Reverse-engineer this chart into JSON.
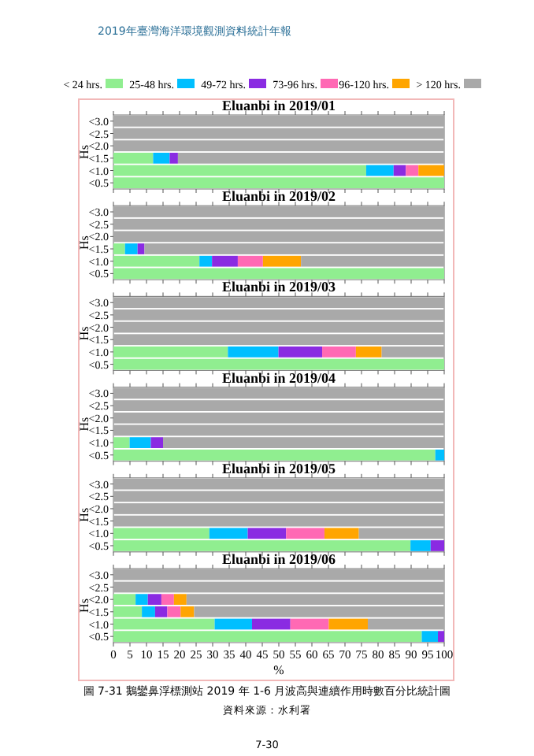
{
  "chart_data": [
    {
      "type": "bar",
      "orientation": "horizontal",
      "stacked": true,
      "title": "Eluanbi in 2019/01",
      "ylabel": "Hs",
      "legend": "top",
      "tick_labels": "y",
      "annotations": [
        "2019年臺灣海洋環境觀測資料統計年報"
      ],
      "categories": [
        "<3.0",
        "<2.5",
        "<2.0",
        "<1.5",
        "<1.0",
        "<0.5"
      ],
      "xlim": [
        0,
        100
      ],
      "xticks": [
        0,
        5,
        10,
        15,
        20,
        25,
        30,
        35,
        40,
        45,
        50,
        55,
        60,
        65,
        70,
        75,
        80,
        85,
        90,
        95,
        100
      ],
      "series": [
        {
          "name": "< 24 hrs.",
          "color": "#90ee90",
          "values": [
            0,
            0,
            0,
            12,
            76.4,
            100
          ]
        },
        {
          "name": "25-48 hrs.",
          "color": "#00bfff",
          "values": [
            0,
            0,
            0,
            5,
            8.3,
            0
          ]
        },
        {
          "name": "49-72 hrs.",
          "color": "#8a2be2",
          "values": [
            0,
            0,
            0,
            2.5,
            3.7,
            0
          ]
        },
        {
          "name": "73-96 hrs.",
          "color": "#ff69b4",
          "values": [
            0,
            0,
            0,
            0,
            3.8,
            0
          ]
        },
        {
          "name": "96-120 hrs.",
          "color": "#ffa500",
          "values": [
            0,
            0,
            0,
            0,
            7.8,
            0
          ]
        },
        {
          "name": "> 120 hrs.",
          "color": "#a9a9a9",
          "values": [
            100,
            100,
            100,
            80.5,
            0,
            0
          ]
        }
      ]
    },
    {
      "type": "bar",
      "orientation": "horizontal",
      "stacked": true,
      "title": "Eluanbi in 2019/02",
      "ylabel": "Hs",
      "tick_labels": "y",
      "categories": [
        "<3.0",
        "<2.5",
        "<2.0",
        "<1.5",
        "<1.0",
        "<0.5"
      ],
      "xlim": [
        0,
        100
      ],
      "xticks": [
        0,
        5,
        10,
        15,
        20,
        25,
        30,
        35,
        40,
        45,
        50,
        55,
        60,
        65,
        70,
        75,
        80,
        85,
        90,
        95,
        100
      ],
      "series": [
        {
          "color": "#90ee90",
          "values": [
            0,
            0,
            0,
            3.5,
            26,
            100
          ]
        },
        {
          "color": "#00bfff",
          "values": [
            0,
            0,
            0,
            3.8,
            3.8,
            0
          ]
        },
        {
          "color": "#8a2be2",
          "values": [
            0,
            0,
            0,
            2.1,
            7.8,
            0
          ]
        },
        {
          "color": "#ff69b4",
          "values": [
            0,
            0,
            0,
            0,
            7.6,
            0
          ]
        },
        {
          "color": "#ffa500",
          "values": [
            0,
            0,
            0,
            0,
            11.5,
            0
          ]
        },
        {
          "color": "#a9a9a9",
          "values": [
            100,
            100,
            100,
            90.6,
            43.3,
            0
          ]
        }
      ]
    },
    {
      "type": "bar",
      "orientation": "horizontal",
      "stacked": true,
      "title": "Eluanbi in 2019/03",
      "ylabel": "Hs",
      "tick_labels": "y",
      "categories": [
        "<3.0",
        "<2.5",
        "<2.0",
        "<1.5",
        "<1.0",
        "<0.5"
      ],
      "xlim": [
        0,
        100
      ],
      "xticks": [
        0,
        5,
        10,
        15,
        20,
        25,
        30,
        35,
        40,
        45,
        50,
        55,
        60,
        65,
        70,
        75,
        80,
        85,
        90,
        95,
        100
      ],
      "series": [
        {
          "color": "#90ee90",
          "values": [
            0,
            0,
            0,
            0,
            34.6,
            100
          ]
        },
        {
          "color": "#00bfff",
          "values": [
            0,
            0,
            0,
            0,
            15.3,
            0
          ]
        },
        {
          "color": "#8a2be2",
          "values": [
            0,
            0,
            0,
            0,
            13.2,
            0
          ]
        },
        {
          "color": "#ff69b4",
          "values": [
            0,
            0,
            0,
            0,
            10.2,
            0
          ]
        },
        {
          "color": "#ffa500",
          "values": [
            0,
            0,
            0,
            0,
            7.8,
            0
          ]
        },
        {
          "color": "#a9a9a9",
          "values": [
            100,
            100,
            100,
            100,
            18.9,
            0
          ]
        }
      ]
    },
    {
      "type": "bar",
      "orientation": "horizontal",
      "stacked": true,
      "title": "Eluanbi in 2019/04",
      "ylabel": "Hs",
      "tick_labels": "y",
      "categories": [
        "<3.0",
        "<2.5",
        "<2.0",
        "<1.5",
        "<1.0",
        "<0.5"
      ],
      "xlim": [
        0,
        100
      ],
      "xticks": [
        0,
        5,
        10,
        15,
        20,
        25,
        30,
        35,
        40,
        45,
        50,
        55,
        60,
        65,
        70,
        75,
        80,
        85,
        90,
        95,
        100
      ],
      "series": [
        {
          "color": "#90ee90",
          "values": [
            0,
            0,
            0,
            0,
            4.9,
            97.3
          ]
        },
        {
          "color": "#00bfff",
          "values": [
            0,
            0,
            0,
            0,
            6.4,
            2.7
          ]
        },
        {
          "color": "#8a2be2",
          "values": [
            0,
            0,
            0,
            0,
            3.7,
            0
          ]
        },
        {
          "color": "#ff69b4",
          "values": [
            0,
            0,
            0,
            0,
            0,
            0
          ]
        },
        {
          "color": "#ffa500",
          "values": [
            0,
            0,
            0,
            0,
            0,
            0
          ]
        },
        {
          "color": "#a9a9a9",
          "values": [
            100,
            100,
            100,
            100,
            85,
            0
          ]
        }
      ]
    },
    {
      "type": "bar",
      "orientation": "horizontal",
      "stacked": true,
      "title": "Eluanbi in 2019/05",
      "ylabel": "Hs",
      "tick_labels": "y",
      "categories": [
        "<3.0",
        "<2.5",
        "<2.0",
        "<1.5",
        "<1.0",
        "<0.5"
      ],
      "xlim": [
        0,
        100
      ],
      "xticks": [
        0,
        5,
        10,
        15,
        20,
        25,
        30,
        35,
        40,
        45,
        50,
        55,
        60,
        65,
        70,
        75,
        80,
        85,
        90,
        95,
        100
      ],
      "series": [
        {
          "color": "#90ee90",
          "values": [
            0,
            0,
            0,
            0,
            29,
            89.8
          ]
        },
        {
          "color": "#00bfff",
          "values": [
            0,
            0,
            0,
            0,
            11.6,
            6.1
          ]
        },
        {
          "color": "#8a2be2",
          "values": [
            0,
            0,
            0,
            0,
            11.6,
            4.1
          ]
        },
        {
          "color": "#ff69b4",
          "values": [
            0,
            0,
            0,
            0,
            11.6,
            0
          ]
        },
        {
          "color": "#ffa500",
          "values": [
            0,
            0,
            0,
            0,
            10.4,
            0
          ]
        },
        {
          "color": "#a9a9a9",
          "values": [
            100,
            100,
            100,
            100,
            25.8,
            0
          ]
        }
      ]
    },
    {
      "type": "bar",
      "orientation": "horizontal",
      "stacked": true,
      "title": "Eluanbi in 2019/06",
      "ylabel": "Hs",
      "xlabel": "%",
      "annotations": [
        "圖 7-31 鵝鑾鼻浮標測站 2019 年 1-6 月波高與連續作用時數百分比統計圖",
        "資料來源：水利署",
        "7-30"
      ],
      "categories": [
        "<3.0",
        "<2.5",
        "<2.0",
        "<1.5",
        "<1.0",
        "<0.5"
      ],
      "xlim": [
        0,
        100
      ],
      "xticks": [
        0,
        5,
        10,
        15,
        20,
        25,
        30,
        35,
        40,
        45,
        50,
        55,
        60,
        65,
        70,
        75,
        80,
        85,
        90,
        95,
        100
      ],
      "series": [
        {
          "color": "#90ee90",
          "values": [
            0,
            0,
            6.7,
            8.6,
            30.6,
            93.2
          ]
        },
        {
          "color": "#00bfff",
          "values": [
            0,
            0,
            3.7,
            4,
            11.3,
            4.9
          ]
        },
        {
          "color": "#8a2be2",
          "values": [
            0,
            0,
            4.1,
            3.7,
            11.6,
            1.9
          ]
        },
        {
          "color": "#ff69b4",
          "values": [
            0,
            0,
            3.8,
            4,
            11.6,
            0
          ]
        },
        {
          "color": "#ffa500",
          "values": [
            0,
            0,
            3.8,
            4.1,
            11.8,
            0
          ]
        },
        {
          "color": "#a9a9a9",
          "values": [
            100,
            100,
            77.9,
            75.6,
            23.1,
            0
          ]
        }
      ]
    }
  ]
}
